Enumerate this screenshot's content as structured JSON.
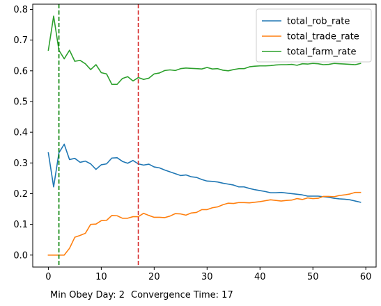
{
  "chart_data": {
    "type": "line",
    "title": "",
    "xlabel": "",
    "ylabel": "",
    "xlim": [
      -2.95,
      61.95
    ],
    "ylim": [
      -0.039,
      0.817
    ],
    "x_ticks": [
      0,
      10,
      20,
      30,
      40,
      50,
      60
    ],
    "y_ticks": [
      0.0,
      0.1,
      0.2,
      0.3,
      0.4,
      0.5,
      0.6,
      0.7,
      0.8
    ],
    "y_tick_labels": [
      "0.0",
      "0.1",
      "0.2",
      "0.3",
      "0.4",
      "0.5",
      "0.6",
      "0.7",
      "0.8"
    ],
    "grid": false,
    "legend_position": "top-right",
    "x": [
      0,
      1,
      2,
      3,
      4,
      5,
      6,
      7,
      8,
      9,
      10,
      11,
      12,
      13,
      14,
      15,
      16,
      17,
      18,
      19,
      20,
      21,
      22,
      23,
      24,
      25,
      26,
      27,
      28,
      29,
      30,
      31,
      32,
      33,
      34,
      35,
      36,
      37,
      38,
      39,
      40,
      41,
      42,
      43,
      44,
      45,
      46,
      47,
      48,
      49,
      50,
      51,
      52,
      53,
      54,
      55,
      56,
      57,
      58,
      59
    ],
    "series": [
      {
        "name": "total_rob_rate",
        "color": "#1f77b4",
        "values": [
          0.333,
          0.222,
          0.333,
          0.361,
          0.311,
          0.315,
          0.302,
          0.306,
          0.297,
          0.279,
          0.294,
          0.297,
          0.316,
          0.317,
          0.305,
          0.299,
          0.308,
          0.297,
          0.293,
          0.296,
          0.287,
          0.284,
          0.277,
          0.271,
          0.265,
          0.259,
          0.261,
          0.255,
          0.253,
          0.246,
          0.241,
          0.24,
          0.238,
          0.234,
          0.231,
          0.228,
          0.222,
          0.222,
          0.217,
          0.213,
          0.21,
          0.207,
          0.203,
          0.203,
          0.204,
          0.202,
          0.2,
          0.198,
          0.196,
          0.192,
          0.192,
          0.192,
          0.19,
          0.188,
          0.185,
          0.183,
          0.182,
          0.18,
          0.176,
          0.172
        ]
      },
      {
        "name": "total_trade_rate",
        "color": "#ff7f0e",
        "values": [
          0.0,
          0.0,
          0.0,
          0.0,
          0.022,
          0.058,
          0.064,
          0.071,
          0.1,
          0.101,
          0.112,
          0.113,
          0.129,
          0.128,
          0.12,
          0.12,
          0.125,
          0.125,
          0.136,
          0.129,
          0.123,
          0.123,
          0.122,
          0.127,
          0.135,
          0.134,
          0.13,
          0.137,
          0.139,
          0.148,
          0.148,
          0.154,
          0.157,
          0.164,
          0.169,
          0.168,
          0.171,
          0.171,
          0.17,
          0.172,
          0.174,
          0.177,
          0.18,
          0.178,
          0.176,
          0.178,
          0.179,
          0.184,
          0.181,
          0.186,
          0.184,
          0.185,
          0.191,
          0.191,
          0.19,
          0.194,
          0.196,
          0.199,
          0.204,
          0.204
        ]
      },
      {
        "name": "total_farm_rate",
        "color": "#2ca02c",
        "values": [
          0.667,
          0.778,
          0.667,
          0.639,
          0.667,
          0.631,
          0.634,
          0.623,
          0.604,
          0.62,
          0.594,
          0.59,
          0.556,
          0.556,
          0.575,
          0.581,
          0.567,
          0.578,
          0.572,
          0.576,
          0.59,
          0.593,
          0.601,
          0.603,
          0.601,
          0.607,
          0.609,
          0.608,
          0.607,
          0.606,
          0.611,
          0.606,
          0.607,
          0.602,
          0.6,
          0.604,
          0.607,
          0.607,
          0.613,
          0.615,
          0.616,
          0.616,
          0.617,
          0.619,
          0.62,
          0.62,
          0.621,
          0.618,
          0.623,
          0.622,
          0.624,
          0.623,
          0.62,
          0.621,
          0.624,
          0.623,
          0.622,
          0.621,
          0.62,
          0.624
        ]
      }
    ],
    "vlines": [
      {
        "x": 2,
        "color": "#008000",
        "style": "dashed"
      },
      {
        "x": 17,
        "color": "#d62728",
        "style": "dashed"
      }
    ]
  },
  "annotations": {
    "min_obey": "Min Obey Day: 2",
    "convergence": "Convergence Time: 17"
  }
}
